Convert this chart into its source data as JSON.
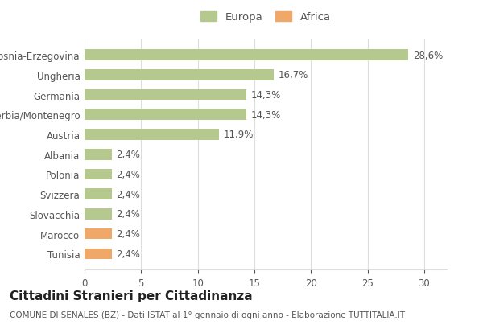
{
  "categories": [
    "Tunisia",
    "Marocco",
    "Slovacchia",
    "Svizzera",
    "Polonia",
    "Albania",
    "Austria",
    "Serbia/Montenegro",
    "Germania",
    "Ungheria",
    "Bosnia-Erzegovina"
  ],
  "values": [
    2.4,
    2.4,
    2.4,
    2.4,
    2.4,
    2.4,
    11.9,
    14.3,
    14.3,
    16.7,
    28.6
  ],
  "colors": [
    "#f0a868",
    "#f0a868",
    "#b5c98e",
    "#b5c98e",
    "#b5c98e",
    "#b5c98e",
    "#b5c98e",
    "#b5c98e",
    "#b5c98e",
    "#b5c98e",
    "#b5c98e"
  ],
  "labels": [
    "2,4%",
    "2,4%",
    "2,4%",
    "2,4%",
    "2,4%",
    "2,4%",
    "11,9%",
    "14,3%",
    "14,3%",
    "16,7%",
    "28,6%"
  ],
  "legend_europa_color": "#b5c98e",
  "legend_africa_color": "#f0a868",
  "title": "Cittadini Stranieri per Cittadinanza",
  "subtitle": "COMUNE DI SENALES (BZ) - Dati ISTAT al 1° gennaio di ogni anno - Elaborazione TUTTITALIA.IT",
  "xlim": [
    0,
    32
  ],
  "xticks": [
    0,
    5,
    10,
    15,
    20,
    25,
    30
  ],
  "background_color": "#ffffff",
  "bar_height": 0.55,
  "label_fontsize": 8.5,
  "title_fontsize": 11,
  "subtitle_fontsize": 7.5,
  "tick_fontsize": 8.5,
  "grid_color": "#dddddd",
  "text_color": "#555555",
  "title_color": "#222222"
}
